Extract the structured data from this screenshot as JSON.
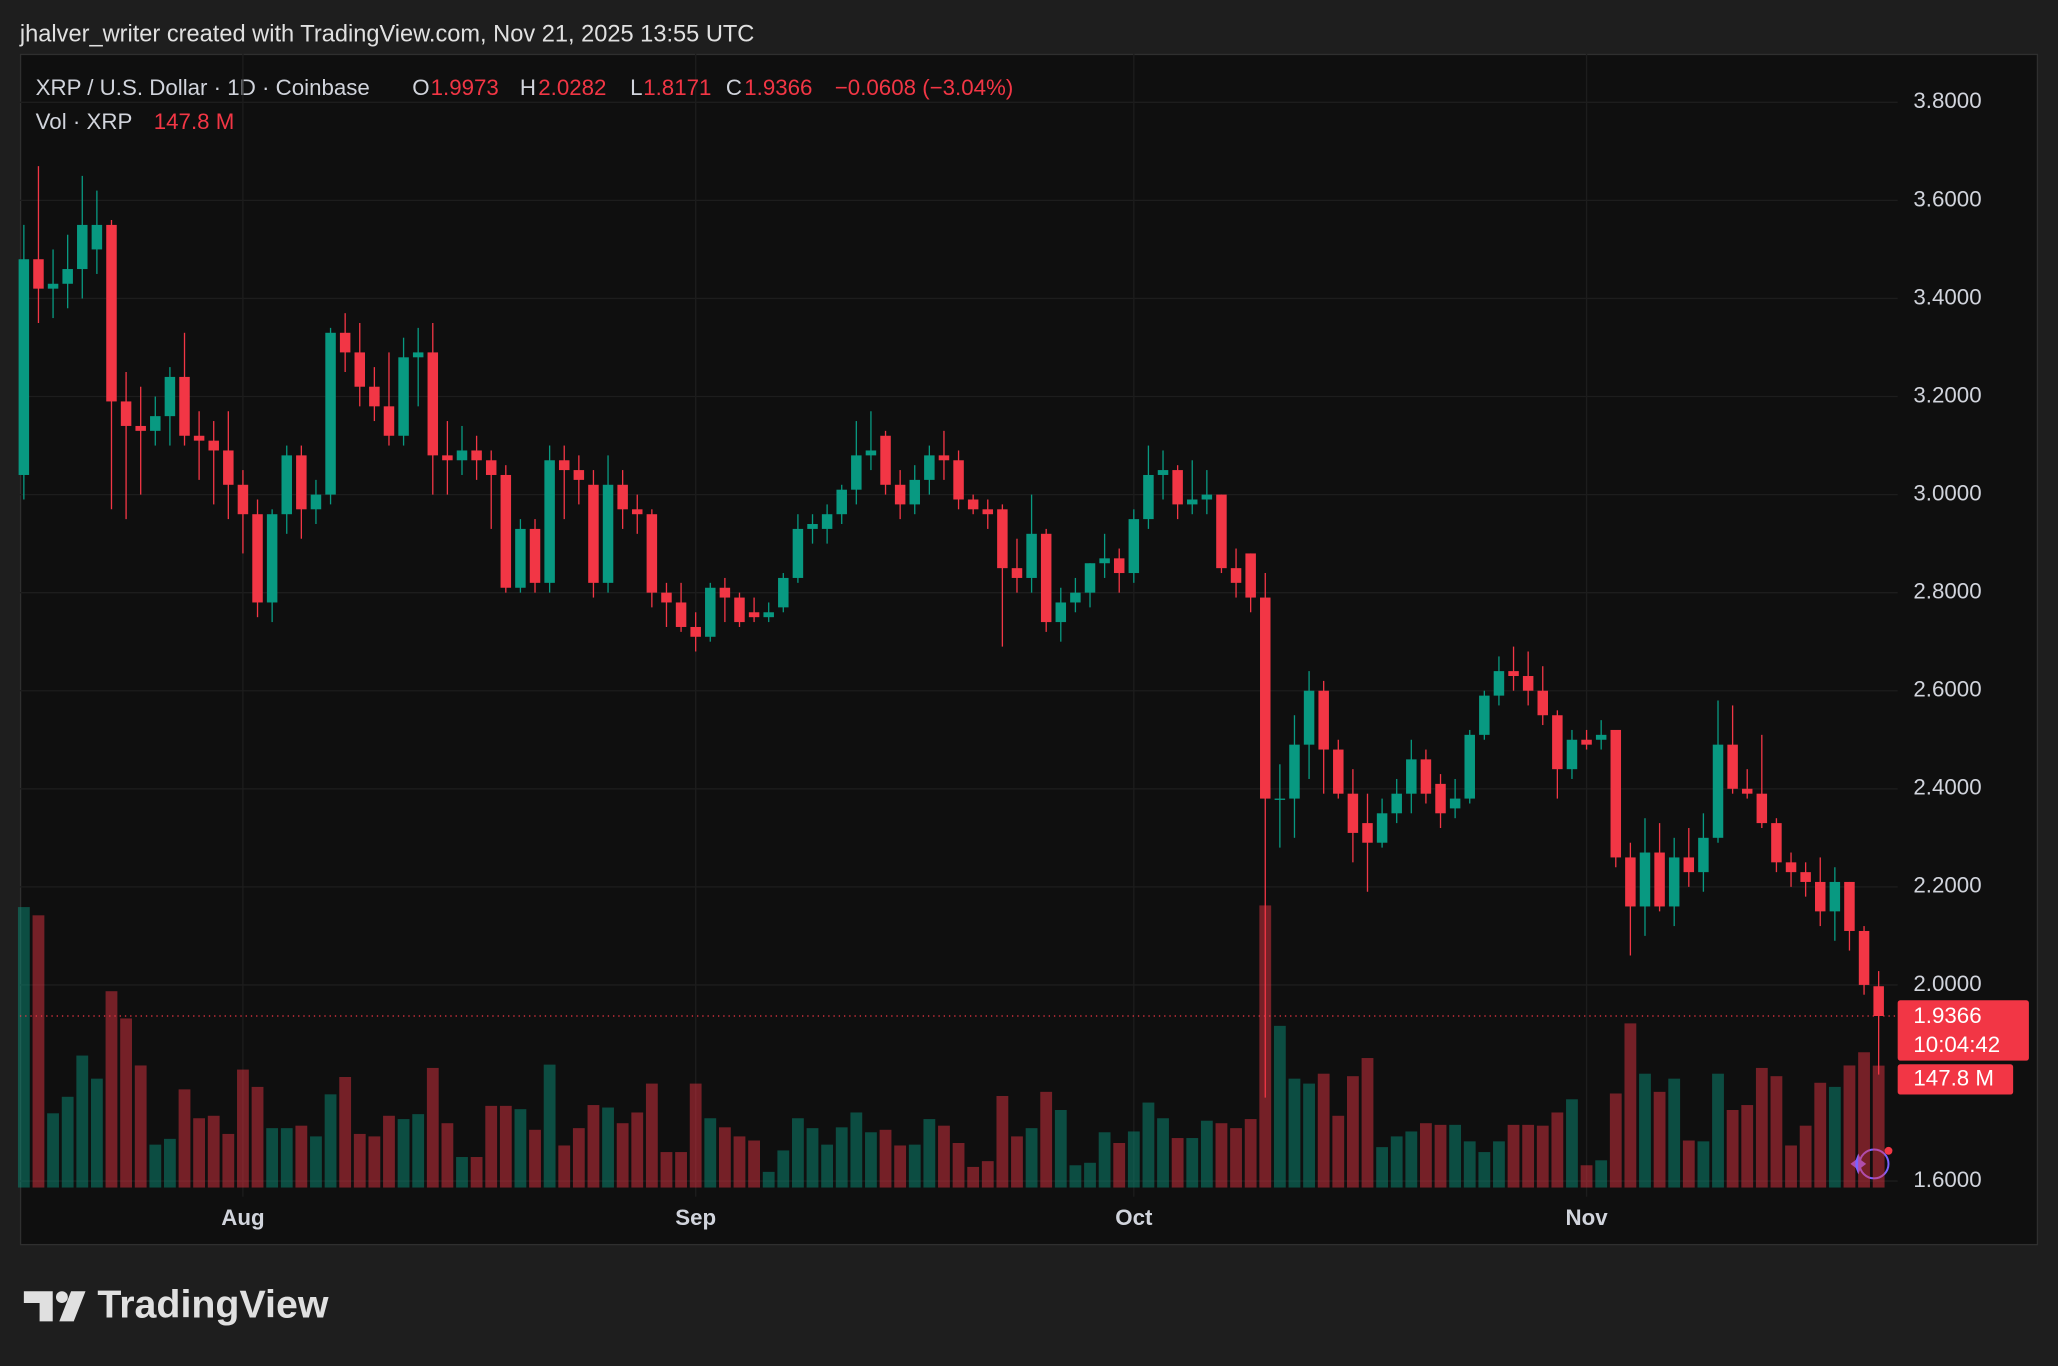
{
  "chart_data": {
    "type": "candlestick",
    "attribution": "jhalver_writer created with TradingView.com, Nov 21, 2025 13:55 UTC",
    "symbol": "XRP / U.S. Dollar · 1D · Coinbase",
    "ohlc_names": {
      "open": "O",
      "high": "H",
      "low": "L",
      "close": "C"
    },
    "change": "−0.0608 (−3.04%)",
    "countdown": "10:04:42",
    "brand": "TradingView",
    "up_color": "#089981",
    "down_color": "#f23645",
    "grid": true,
    "ylim": [
      1.568,
      3.899
    ],
    "yticks": [
      {
        "value": 1.6,
        "label": "1.6000"
      },
      {
        "value": 2.0,
        "label": "2.0000"
      },
      {
        "value": 2.2,
        "label": "2.2000"
      },
      {
        "value": 2.4,
        "label": "2.4000"
      },
      {
        "value": 2.6,
        "label": "2.6000"
      },
      {
        "value": 2.8,
        "label": "2.8000"
      },
      {
        "value": 3.0,
        "label": "3.0000"
      },
      {
        "value": 3.2,
        "label": "3.2000"
      },
      {
        "value": 3.4,
        "label": "3.4000"
      },
      {
        "value": 3.6,
        "label": "3.6000"
      },
      {
        "value": 3.8,
        "label": "3.8000"
      }
    ],
    "categories": [
      null,
      null,
      null,
      null,
      null,
      null,
      null,
      null,
      null,
      null,
      null,
      null,
      null,
      null,
      null,
      "Aug",
      null,
      null,
      null,
      null,
      null,
      null,
      null,
      null,
      null,
      null,
      null,
      null,
      null,
      null,
      null,
      null,
      null,
      null,
      null,
      null,
      null,
      null,
      null,
      null,
      null,
      null,
      null,
      null,
      null,
      null,
      "Sep",
      null,
      null,
      null,
      null,
      null,
      null,
      null,
      null,
      null,
      null,
      null,
      null,
      null,
      null,
      null,
      null,
      null,
      null,
      null,
      null,
      null,
      null,
      null,
      null,
      null,
      null,
      null,
      null,
      null,
      "Oct",
      null,
      null,
      null,
      null,
      null,
      null,
      null,
      null,
      null,
      null,
      null,
      null,
      null,
      null,
      null,
      null,
      null,
      null,
      null,
      null,
      null,
      null,
      null,
      null,
      null,
      null,
      null,
      null,
      null,
      null,
      "Nov",
      null,
      null,
      null,
      null,
      null,
      null,
      null,
      null,
      null,
      null,
      null,
      null,
      null,
      null,
      null,
      null,
      null,
      null,
      null,
      null
    ],
    "open": [
      3.04,
      3.48,
      3.42,
      3.43,
      3.46,
      3.5,
      3.55,
      3.19,
      3.14,
      3.13,
      3.16,
      3.24,
      3.12,
      3.11,
      3.09,
      3.02,
      2.96,
      2.78,
      2.96,
      3.08,
      2.97,
      3.0,
      3.33,
      3.29,
      3.22,
      3.18,
      3.12,
      3.28,
      3.29,
      3.08,
      3.07,
      3.09,
      3.07,
      3.04,
      2.81,
      2.93,
      2.82,
      3.07,
      3.05,
      3.02,
      2.82,
      3.02,
      2.97,
      2.96,
      2.8,
      2.78,
      2.73,
      2.71,
      2.81,
      2.79,
      2.76,
      2.75,
      2.77,
      2.83,
      2.93,
      2.93,
      2.96,
      3.01,
      3.08,
      3.12,
      3.02,
      2.98,
      3.03,
      3.08,
      3.07,
      2.99,
      2.97,
      2.97,
      2.85,
      2.83,
      2.92,
      2.74,
      2.78,
      2.8,
      2.86,
      2.87,
      2.84,
      2.95,
      3.04,
      3.05,
      2.98,
      2.99,
      3.0,
      2.85,
      2.88,
      2.79,
      2.38,
      2.38,
      2.49,
      2.6,
      2.48,
      2.39,
      2.33,
      2.29,
      2.35,
      2.39,
      2.46,
      2.41,
      2.36,
      2.38,
      2.51,
      2.59,
      2.64,
      2.63,
      2.6,
      2.55,
      2.44,
      2.5,
      2.5,
      2.52,
      2.26,
      2.16,
      2.27,
      2.16,
      2.26,
      2.23,
      2.3,
      2.49,
      2.4,
      2.39,
      2.33,
      2.25,
      2.23,
      2.21,
      2.15,
      2.21,
      2.11,
      1.9973
    ],
    "high": [
      3.55,
      3.67,
      3.5,
      3.53,
      3.65,
      3.62,
      3.56,
      3.25,
      3.22,
      3.2,
      3.26,
      3.33,
      3.17,
      3.15,
      3.17,
      3.05,
      2.99,
      2.97,
      3.1,
      3.1,
      3.03,
      3.34,
      3.37,
      3.35,
      3.26,
      3.29,
      3.32,
      3.34,
      3.35,
      3.15,
      3.14,
      3.12,
      3.09,
      3.06,
      2.95,
      2.95,
      3.1,
      3.1,
      3.08,
      3.05,
      3.08,
      3.05,
      3.0,
      2.97,
      2.82,
      2.82,
      2.76,
      2.82,
      2.83,
      2.8,
      2.79,
      2.78,
      2.84,
      2.96,
      2.96,
      2.98,
      3.02,
      3.15,
      3.17,
      3.13,
      3.05,
      3.06,
      3.1,
      3.13,
      3.09,
      3.0,
      2.99,
      2.98,
      2.91,
      3.0,
      2.93,
      2.81,
      2.83,
      2.86,
      2.92,
      2.89,
      2.97,
      3.1,
      3.09,
      3.06,
      3.07,
      3.05,
      3.0,
      2.89,
      2.88,
      2.84,
      2.45,
      2.55,
      2.64,
      2.62,
      2.5,
      2.44,
      2.39,
      2.38,
      2.42,
      2.5,
      2.48,
      2.43,
      2.42,
      2.52,
      2.6,
      2.67,
      2.69,
      2.68,
      2.65,
      2.56,
      2.52,
      2.52,
      2.54,
      2.52,
      2.29,
      2.34,
      2.33,
      2.3,
      2.32,
      2.35,
      2.58,
      2.57,
      2.44,
      2.51,
      2.34,
      2.27,
      2.25,
      2.26,
      2.24,
      2.21,
      2.12,
      2.0282
    ],
    "low": [
      2.99,
      3.35,
      3.36,
      3.38,
      3.4,
      3.45,
      2.97,
      2.95,
      3.0,
      3.1,
      3.1,
      3.1,
      3.03,
      2.98,
      2.95,
      2.88,
      2.75,
      2.74,
      2.92,
      2.91,
      2.94,
      2.98,
      3.25,
      3.18,
      3.15,
      3.1,
      3.1,
      3.18,
      3.0,
      3.0,
      3.04,
      3.03,
      2.93,
      2.8,
      2.8,
      2.8,
      2.8,
      2.95,
      2.98,
      2.79,
      2.8,
      2.93,
      2.92,
      2.77,
      2.73,
      2.72,
      2.68,
      2.7,
      2.74,
      2.73,
      2.74,
      2.74,
      2.76,
      2.82,
      2.9,
      2.9,
      2.94,
      2.98,
      3.05,
      3.0,
      2.95,
      2.96,
      3.0,
      3.03,
      2.97,
      2.96,
      2.93,
      2.69,
      2.8,
      2.8,
      2.72,
      2.7,
      2.76,
      2.77,
      2.83,
      2.8,
      2.82,
      2.93,
      2.99,
      2.95,
      2.96,
      2.96,
      2.84,
      2.79,
      2.76,
      1.77,
      2.28,
      2.3,
      2.42,
      2.39,
      2.38,
      2.25,
      2.19,
      2.28,
      2.33,
      2.35,
      2.37,
      2.32,
      2.34,
      2.37,
      2.5,
      2.57,
      2.6,
      2.57,
      2.53,
      2.38,
      2.42,
      2.48,
      2.48,
      2.24,
      2.06,
      2.1,
      2.15,
      2.12,
      2.2,
      2.19,
      2.29,
      2.39,
      2.38,
      2.32,
      2.23,
      2.2,
      2.18,
      2.12,
      2.09,
      2.07,
      1.98,
      1.8171
    ],
    "close": [
      3.48,
      3.42,
      3.43,
      3.46,
      3.55,
      3.55,
      3.19,
      3.14,
      3.13,
      3.16,
      3.24,
      3.12,
      3.11,
      3.09,
      3.02,
      2.96,
      2.78,
      2.96,
      3.08,
      2.97,
      3.0,
      3.33,
      3.29,
      3.22,
      3.18,
      3.12,
      3.28,
      3.29,
      3.08,
      3.07,
      3.09,
      3.07,
      3.04,
      2.81,
      2.93,
      2.82,
      3.07,
      3.05,
      3.03,
      2.82,
      3.02,
      2.97,
      2.96,
      2.8,
      2.78,
      2.73,
      2.71,
      2.81,
      2.79,
      2.74,
      2.75,
      2.76,
      2.83,
      2.93,
      2.94,
      2.96,
      3.01,
      3.08,
      3.09,
      3.02,
      2.98,
      3.03,
      3.08,
      3.07,
      2.99,
      2.97,
      2.96,
      2.85,
      2.83,
      2.92,
      2.74,
      2.78,
      2.8,
      2.86,
      2.87,
      2.84,
      2.95,
      3.04,
      3.05,
      2.98,
      2.99,
      3.0,
      2.85,
      2.82,
      2.79,
      2.38,
      2.38,
      2.49,
      2.6,
      2.48,
      2.39,
      2.31,
      2.29,
      2.35,
      2.39,
      2.46,
      2.39,
      2.35,
      2.38,
      2.51,
      2.59,
      2.64,
      2.63,
      2.6,
      2.55,
      2.44,
      2.5,
      2.49,
      2.51,
      2.26,
      2.16,
      2.27,
      2.16,
      2.26,
      2.23,
      2.3,
      2.49,
      2.4,
      2.39,
      2.33,
      2.25,
      2.23,
      2.21,
      2.15,
      2.21,
      2.11,
      2.0,
      1.9366
    ],
    "volume": {
      "name": "Vol · XRP",
      "values": [
        340,
        330,
        90,
        110,
        160,
        132,
        238,
        205,
        148,
        52,
        59,
        119,
        84,
        87,
        65,
        143,
        122,
        72,
        72,
        75,
        62,
        113,
        134,
        65,
        62,
        87,
        83,
        89,
        145,
        78,
        37,
        37,
        99,
        99,
        95,
        70,
        149,
        51,
        72,
        100,
        97,
        78,
        91,
        126,
        43,
        43,
        126,
        84,
        73,
        62,
        57,
        19,
        45,
        84,
        72,
        52,
        73,
        91,
        67,
        70,
        51,
        52,
        83,
        75,
        54,
        25,
        32,
        111,
        62,
        72,
        116,
        94,
        27,
        30,
        67,
        54,
        68,
        103,
        84,
        60,
        60,
        81,
        78,
        72,
        83,
        342,
        196,
        132,
        126,
        138,
        87,
        135,
        157,
        49,
        62,
        68,
        78,
        76,
        76,
        56,
        43,
        56,
        76,
        76,
        75,
        91,
        107,
        27,
        33,
        114,
        199,
        138,
        116,
        132,
        57,
        56,
        138,
        94,
        100,
        145,
        135,
        51,
        75,
        127,
        122,
        148,
        164,
        147.8
      ],
      "value_labels": [
        null,
        null,
        null,
        null,
        null,
        null,
        null,
        null,
        null,
        null,
        null,
        null,
        null,
        null,
        null,
        null,
        null,
        null,
        null,
        null,
        null,
        null,
        null,
        null,
        null,
        null,
        null,
        null,
        null,
        null,
        null,
        null,
        null,
        null,
        null,
        null,
        null,
        null,
        null,
        null,
        null,
        null,
        null,
        null,
        null,
        null,
        null,
        null,
        null,
        null,
        null,
        null,
        null,
        null,
        null,
        null,
        null,
        null,
        null,
        null,
        null,
        null,
        null,
        null,
        null,
        null,
        null,
        null,
        null,
        null,
        null,
        null,
        null,
        null,
        null,
        null,
        null,
        null,
        null,
        null,
        null,
        null,
        null,
        null,
        null,
        null,
        null,
        null,
        null,
        null,
        null,
        null,
        null,
        null,
        null,
        null,
        null,
        null,
        null,
        null,
        null,
        null,
        null,
        null,
        null,
        null,
        null,
        null,
        null,
        null,
        null,
        null,
        null,
        null,
        null,
        null,
        null,
        null,
        null,
        null,
        null,
        null,
        null,
        null,
        null,
        null,
        null,
        "147.8 M"
      ]
    }
  }
}
